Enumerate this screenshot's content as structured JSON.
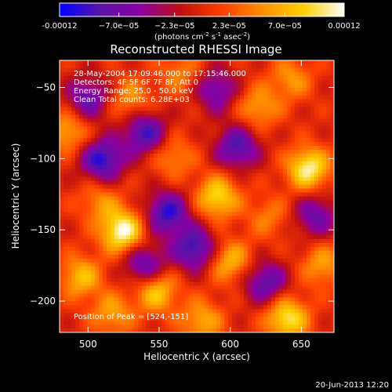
{
  "chart_data": {
    "type": "heatmap",
    "title": "Reconstructed RHESSI Image",
    "xlabel": "Heliocentric X (arcsec)",
    "ylabel": "Heliocentric Y (arcsec)",
    "xlim": [
      480,
      673
    ],
    "ylim": [
      -222,
      -31
    ],
    "x_ticks": [
      500,
      550,
      600,
      650
    ],
    "y_ticks": [
      -50,
      -100,
      -150,
      -200
    ],
    "colorbar": {
      "min": -0.00012,
      "max": 0.00012,
      "ticks": [
        -0.00012,
        -7e-05,
        -2.3e-05,
        2.3e-05,
        7e-05,
        0.00012
      ],
      "tick_labels": [
        "-0.00012",
        "−7.0e−05",
        "−2.3e−05",
        "2.3e−05",
        "7.0e−05",
        "0.00012"
      ],
      "units_line": "(photons cm",
      "units_exp1": "-2",
      "units_mid": " s",
      "units_exp2": "-1",
      "units_mid2": " asec",
      "units_exp3": "-2",
      "units_end": ")",
      "colormap": [
        "#0000ff",
        "#5a14a8",
        "#8c00a0",
        "#c01010",
        "#ff4000",
        "#ff9000",
        "#ffd000",
        "#ffffff"
      ]
    },
    "annotations": {
      "line1": "28-May-2004 17:09:46.000 to 17:15:46.000",
      "line2": "Detectors: 4F 5F 6F 7F 8F, Att 0",
      "line3": "Energy Range: 25.0 - 50.0 keV",
      "line4": "Clean     Total counts: 6.28E+03",
      "peak": "Position of Peak = [524,-151]"
    },
    "sources": [
      {
        "x": 524,
        "y": -151,
        "v": 1.0
      },
      {
        "x": 655,
        "y": -107,
        "v": 0.92
      },
      {
        "x": 640,
        "y": -212,
        "v": 0.85
      },
      {
        "x": 591,
        "y": -127,
        "v": 0.78
      },
      {
        "x": 600,
        "y": -172,
        "v": 0.6
      },
      {
        "x": 548,
        "y": -193,
        "v": 0.72
      },
      {
        "x": 495,
        "y": -183,
        "v": 0.62
      },
      {
        "x": 486,
        "y": -81,
        "v": 0.55
      },
      {
        "x": 530,
        "y": -58,
        "v": 0.45
      },
      {
        "x": 620,
        "y": -64,
        "v": 0.5
      },
      {
        "x": 560,
        "y": -99,
        "v": 0.42
      },
      {
        "x": 580,
        "y": -214,
        "v": 0.55
      },
      {
        "x": 665,
        "y": -175,
        "v": 0.5
      },
      {
        "x": 508,
        "y": -130,
        "v": 0.4
      },
      {
        "x": 627,
        "y": -141,
        "v": 0.35
      },
      {
        "x": 565,
        "y": -40,
        "v": 0.38
      },
      {
        "x": 517,
        "y": -209,
        "v": 0.5
      },
      {
        "x": 643,
        "y": -44,
        "v": 0.45
      },
      {
        "x": 556,
        "y": -138,
        "v": -0.85
      },
      {
        "x": 510,
        "y": -101,
        "v": -0.9
      },
      {
        "x": 540,
        "y": -82,
        "v": -0.8
      },
      {
        "x": 605,
        "y": -92,
        "v": -0.75
      },
      {
        "x": 625,
        "y": -187,
        "v": -0.7
      },
      {
        "x": 575,
        "y": -163,
        "v": -0.85
      },
      {
        "x": 500,
        "y": -58,
        "v": -0.65
      },
      {
        "x": 660,
        "y": -140,
        "v": -0.6
      },
      {
        "x": 540,
        "y": -175,
        "v": -0.7
      },
      {
        "x": 590,
        "y": -52,
        "v": -0.6
      }
    ]
  },
  "footer": {
    "timestamp": "20-Jun-2013 12:20"
  }
}
